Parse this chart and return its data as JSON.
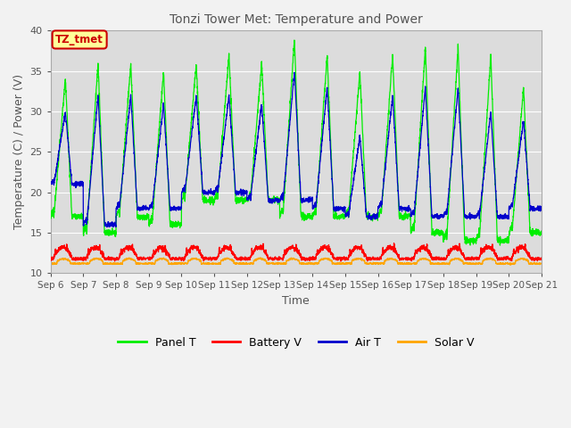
{
  "title": "Tonzi Tower Met: Temperature and Power",
  "xlabel": "Time",
  "ylabel": "Temperature (C) / Power (V)",
  "ylim": [
    10,
    40
  ],
  "start_day": 6,
  "end_day": 21,
  "x_tick_labels": [
    "Sep 6",
    "Sep 7",
    "Sep 8",
    "Sep 9",
    "Sep 10",
    "Sep 11",
    "Sep 12",
    "Sep 13",
    "Sep 14",
    "Sep 15",
    "Sep 16",
    "Sep 17",
    "Sep 18",
    "Sep 19",
    "Sep 20",
    "Sep 21"
  ],
  "panel_t_color": "#00EE00",
  "battery_v_color": "#FF0000",
  "air_t_color": "#0000CC",
  "solar_v_color": "#FFA500",
  "bg_plot_color": "#DCDCDC",
  "fig_bg_color": "#F2F2F2",
  "annotation_text": "TZ_tmet",
  "annotation_box_color": "#FFFF99",
  "annotation_border_color": "#CC0000",
  "annotation_text_color": "#CC0000",
  "grid_color": "#FFFFFF",
  "yticks": [
    10,
    15,
    20,
    25,
    30,
    35,
    40
  ],
  "title_color": "#555555",
  "label_color": "#555555",
  "tick_color": "#555555",
  "panel_peaks": [
    34,
    36,
    36,
    35,
    36,
    37,
    36,
    39,
    37,
    35,
    37,
    38,
    38,
    37,
    33
  ],
  "panel_troughs": [
    17,
    15,
    17,
    16,
    19,
    19,
    19,
    17,
    17,
    17,
    17,
    15,
    14,
    14,
    15
  ],
  "air_peaks": [
    30,
    32,
    32,
    31,
    32,
    32,
    31,
    35,
    33,
    27,
    32,
    33,
    33,
    30,
    29
  ],
  "air_troughs": [
    21,
    16,
    18,
    18,
    20,
    20,
    19,
    19,
    18,
    17,
    18,
    17,
    17,
    17,
    18
  ]
}
